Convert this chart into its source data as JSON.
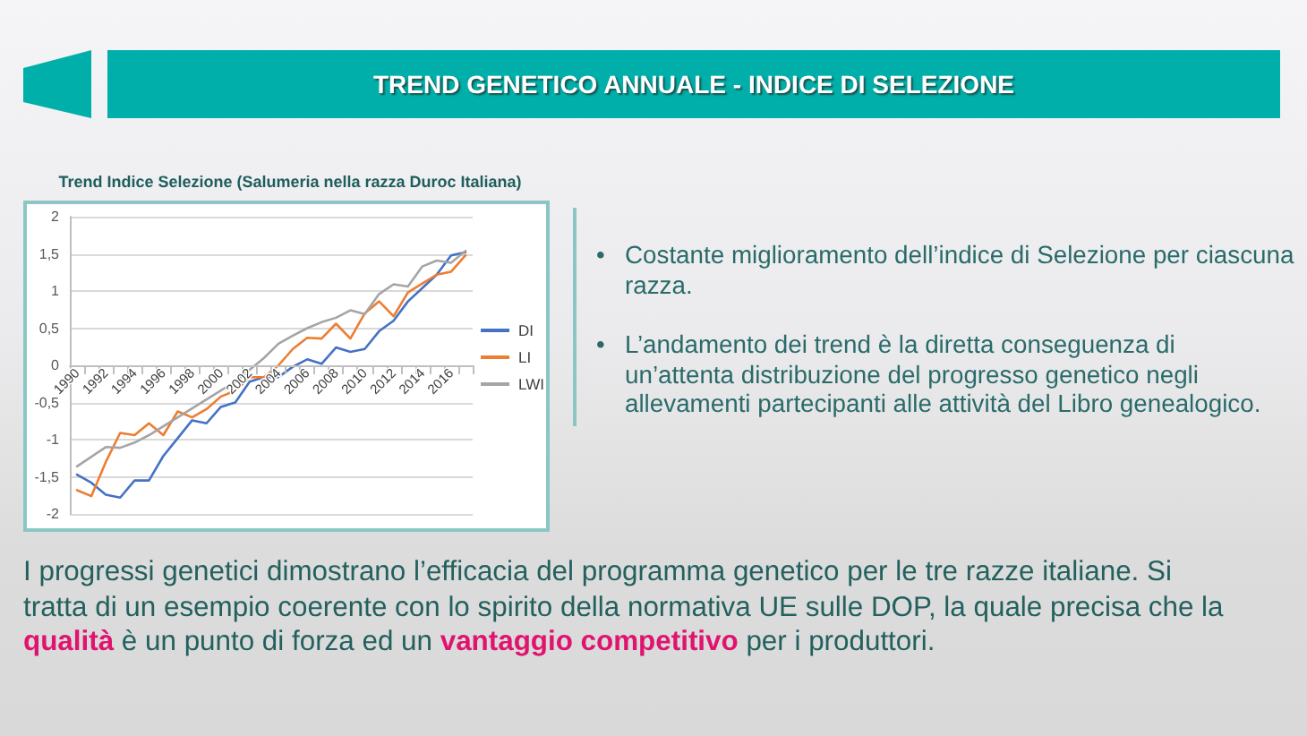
{
  "chart_data": {
    "type": "line",
    "title": "Trend Indice Selezione (Salumeria nella razza Duroc Italiana)",
    "annotations": [
      "TREND GENETICO ANNUALE - INDICE DI SELEZIONE",
      "• Costante miglioramento dell’indice di Selezione per ciascuna razza.",
      "• L’andamento dei trend è la diretta conseguenza di\nun’attenta distribuzione del progresso genetico negli\nallevamenti partecipanti alle attività del Libro genealogico.",
      "I progressi genetici dimostrano l’efficacia del programma genetico per le tre razze italiane. Si tratta di un esempio coerente con lo spirito della normativa UE sulle DOP, la quale precisa che la",
      "qualità",
      "è un punto di forza ed un",
      "vantaggio competitivo",
      "per i produttori."
    ],
    "categories": [
      "1990",
      null,
      "1992",
      null,
      "1994",
      null,
      "1996",
      null,
      "1998",
      null,
      "2000",
      null,
      "2002",
      null,
      "2004",
      null,
      "2006",
      null,
      "2008",
      null,
      "2010",
      null,
      "2012",
      null,
      "2014",
      null,
      "2016",
      null
    ],
    "series": [
      {
        "name": "DI",
        "color": "#4472c4",
        "values": [
          -1.47,
          -1.58,
          -1.74,
          -1.78,
          -1.55,
          -1.55,
          -1.22,
          -0.98,
          -0.74,
          -0.78,
          -0.56,
          -0.5,
          -0.22,
          -0.16,
          -0.16,
          -0.02,
          0.08,
          0.02,
          0.24,
          0.18,
          0.22,
          0.46,
          0.6,
          0.86,
          1.04,
          1.22,
          1.48,
          1.52
        ]
      },
      {
        "name": "LI",
        "color": "#ed7d31",
        "values": [
          -1.68,
          -1.76,
          -1.3,
          -0.91,
          -0.94,
          -0.78,
          -0.94,
          -0.62,
          -0.7,
          -0.59,
          -0.42,
          -0.34,
          -0.16,
          -0.16,
          0,
          0.22,
          0.37,
          0.36,
          0.56,
          0.36,
          0.7,
          0.86,
          0.66,
          0.98,
          1.1,
          1.22,
          1.26,
          1.48
        ]
      },
      {
        "name": "LWI",
        "color": "#a5a5a5",
        "values": [
          -1.36,
          -1.23,
          -1.1,
          -1.11,
          -1.04,
          -0.94,
          -0.82,
          -0.7,
          -0.58,
          -0.46,
          -0.34,
          -0.22,
          -0.06,
          0.1,
          0.29,
          0.4,
          0.5,
          0.58,
          0.64,
          0.74,
          0.69,
          0.96,
          1.09,
          1.06,
          1.33,
          1.41,
          1.38,
          1.54
        ]
      }
    ],
    "ylim": [
      -2,
      2
    ],
    "yticks": [
      -2,
      {
        "value": -1.5,
        "label": "-1,5"
      },
      -1,
      {
        "value": -0.5,
        "label": "-0,5"
      },
      0,
      {
        "value": 0.5,
        "label": "0,5"
      },
      1,
      {
        "value": 1.5,
        "label": "1,5"
      },
      2
    ],
    "grid": "y",
    "legend": "right",
    "marker": "none",
    "line_style": "solid"
  }
}
